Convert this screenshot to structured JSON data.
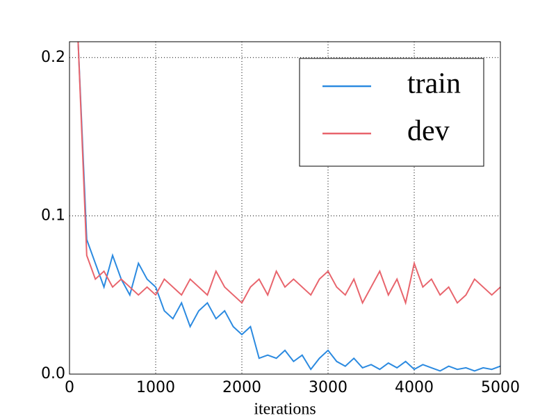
{
  "chart_data": {
    "type": "line",
    "xlabel": "iterations",
    "x": [
      100,
      200,
      300,
      400,
      500,
      600,
      700,
      800,
      900,
      1000,
      1100,
      1200,
      1300,
      1400,
      1500,
      1600,
      1700,
      1800,
      1900,
      2000,
      2100,
      2200,
      2300,
      2400,
      2500,
      2600,
      2700,
      2800,
      2900,
      3000,
      3100,
      3200,
      3300,
      3400,
      3500,
      3600,
      3700,
      3800,
      3900,
      4000,
      4100,
      4200,
      4300,
      4400,
      4500,
      4600,
      4700,
      4800,
      4900,
      5000
    ],
    "series": [
      {
        "name": "train",
        "color": "#2b8ae0",
        "values": [
          0.21,
          0.085,
          0.07,
          0.055,
          0.075,
          0.06,
          0.05,
          0.07,
          0.06,
          0.055,
          0.04,
          0.035,
          0.045,
          0.03,
          0.04,
          0.045,
          0.035,
          0.04,
          0.03,
          0.025,
          0.03,
          0.01,
          0.012,
          0.01,
          0.015,
          0.008,
          0.012,
          0.003,
          0.01,
          0.015,
          0.008,
          0.005,
          0.01,
          0.004,
          0.006,
          0.003,
          0.007,
          0.004,
          0.008,
          0.003,
          0.006,
          0.004,
          0.002,
          0.005,
          0.003,
          0.004,
          0.002,
          0.004,
          0.003,
          0.005
        ]
      },
      {
        "name": "dev",
        "color": "#e8646c",
        "values": [
          0.21,
          0.075,
          0.06,
          0.065,
          0.055,
          0.06,
          0.055,
          0.05,
          0.055,
          0.05,
          0.06,
          0.055,
          0.05,
          0.06,
          0.055,
          0.05,
          0.065,
          0.055,
          0.05,
          0.045,
          0.055,
          0.06,
          0.05,
          0.065,
          0.055,
          0.06,
          0.055,
          0.05,
          0.06,
          0.065,
          0.055,
          0.05,
          0.06,
          0.045,
          0.055,
          0.065,
          0.05,
          0.06,
          0.045,
          0.07,
          0.055,
          0.06,
          0.05,
          0.055,
          0.045,
          0.05,
          0.06,
          0.055,
          0.05,
          0.055
        ]
      }
    ],
    "xlim": [
      0,
      5000
    ],
    "xticks": [
      0,
      1000,
      2000,
      3000,
      4000,
      5000
    ],
    "ylim": [
      0,
      0.21
    ],
    "yticks": [
      {
        "value": 0,
        "label": "0.0"
      },
      0.1,
      0.2
    ],
    "grid": true,
    "legend": "upper right"
  }
}
